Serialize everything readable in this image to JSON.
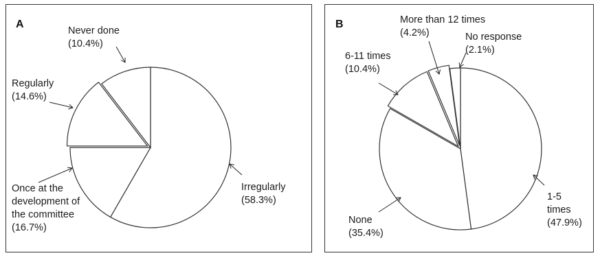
{
  "chart_data": [
    {
      "type": "pie",
      "panel_label": "A",
      "slices": [
        {
          "lines": [
            "Irregularly",
            "(58.3%)"
          ],
          "value": 58.3
        },
        {
          "lines": [
            "Once at the",
            "development of",
            "the committee",
            "(16.7%)"
          ],
          "value": 16.7
        },
        {
          "lines": [
            "Regularly",
            "(14.6%)"
          ],
          "value": 14.6
        },
        {
          "lines": [
            "Never done",
            "(10.4%)"
          ],
          "value": 10.4
        }
      ]
    },
    {
      "type": "pie",
      "panel_label": "B",
      "slices": [
        {
          "lines": [
            "1-5",
            "times",
            "(47.9%)"
          ],
          "value": 47.9
        },
        {
          "lines": [
            "None",
            "(35.4%)"
          ],
          "value": 35.4
        },
        {
          "lines": [
            "6-11 times",
            "(10.4%)"
          ],
          "value": 10.4
        },
        {
          "lines": [
            "More than 12 times",
            "(4.2%)"
          ],
          "value": 4.2
        },
        {
          "lines": [
            "No response",
            "(2.1%)"
          ],
          "value": 2.1
        }
      ]
    }
  ]
}
